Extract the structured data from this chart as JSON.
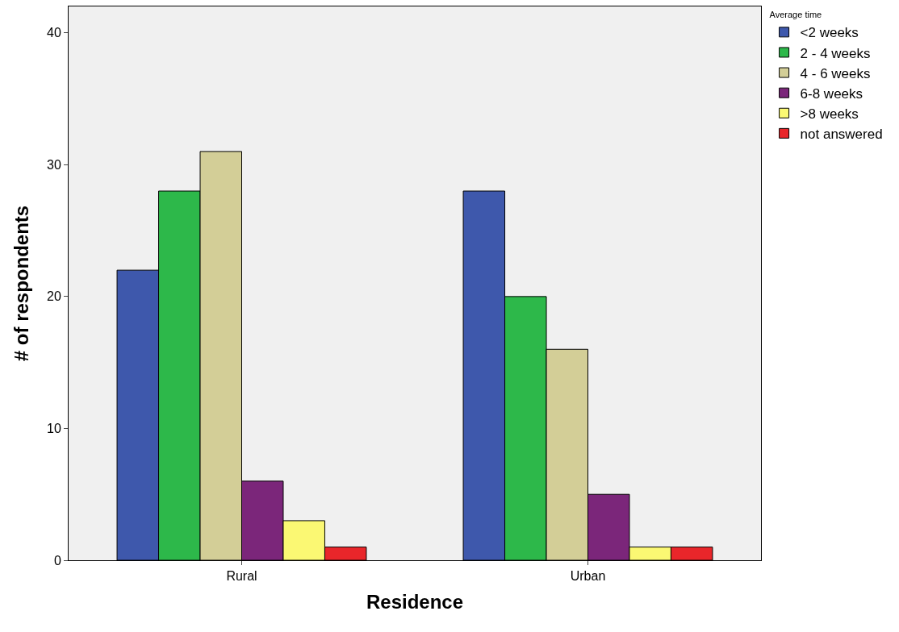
{
  "chart_data": {
    "type": "bar",
    "xlabel": "Residence",
    "ylabel": "# of respondents",
    "legend_title": "Average time",
    "categories": [
      "Rural",
      "Urban"
    ],
    "series": [
      {
        "name": "<2 weeks",
        "color": "#3e58ac",
        "values": [
          22,
          28
        ]
      },
      {
        "name": "2 - 4 weeks",
        "color": "#2db84a",
        "values": [
          28,
          20
        ]
      },
      {
        "name": "4 - 6 weeks",
        "color": "#d3ce97",
        "values": [
          31,
          16
        ]
      },
      {
        "name": "6-8 weeks",
        "color": "#7b267a",
        "values": [
          6,
          5
        ]
      },
      {
        "name": ">8 weeks",
        "color": "#fbf873",
        "values": [
          3,
          1
        ]
      },
      {
        "name": "not answered",
        "color": "#e9262a",
        "values": [
          1,
          1
        ]
      }
    ],
    "ylim": [
      0,
      42
    ],
    "yticks": [
      0,
      10,
      20,
      30,
      40
    ],
    "grid": false,
    "legend": "top right"
  }
}
